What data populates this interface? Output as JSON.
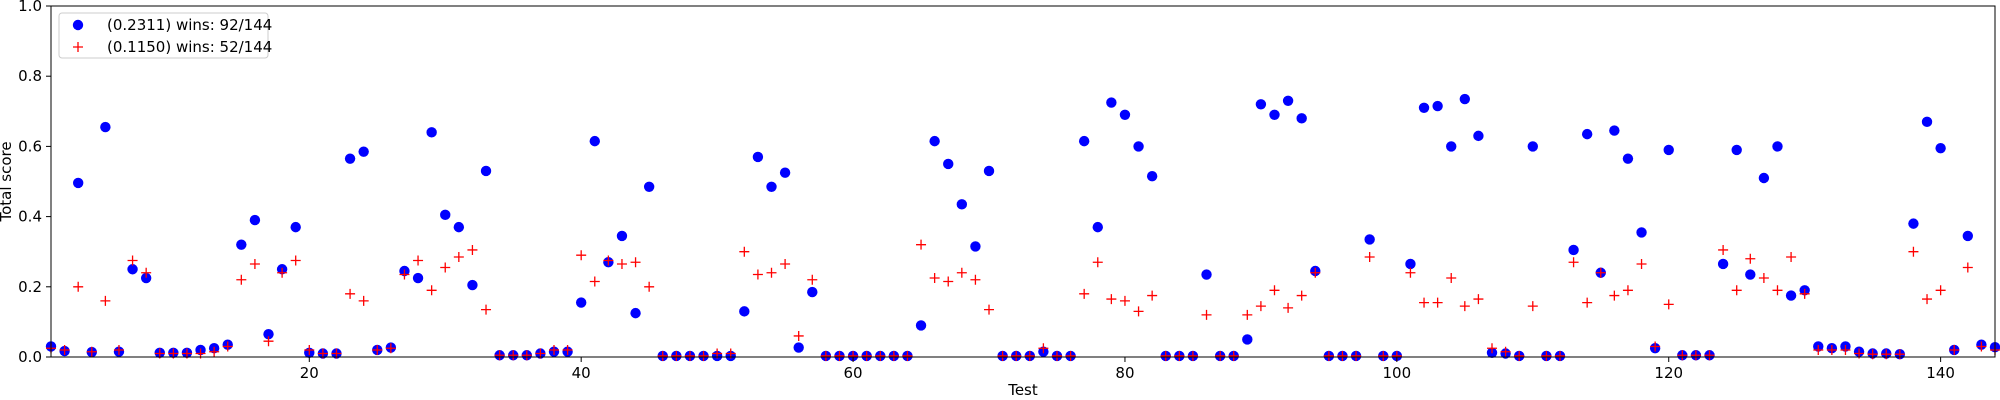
{
  "chart_data": {
    "type": "scatter",
    "xlabel": "Test",
    "ylabel": "Total score",
    "xlim": [
      1,
      144
    ],
    "ylim": [
      0,
      1.0
    ],
    "xticks": [
      20,
      40,
      60,
      80,
      100,
      120,
      140
    ],
    "yticks": [
      0.0,
      0.2,
      0.4,
      0.6,
      0.8,
      1.0
    ],
    "ytick_labels": [
      "0.0",
      "0.2",
      "0.4",
      "0.6",
      "0.8",
      "1.0"
    ],
    "grid": false,
    "legend_position": "top-left",
    "series": [
      {
        "name": "(0.2311) wins: 92/144",
        "marker": "circle",
        "color": "#0000ff",
        "values": [
          0.03,
          0.017,
          0.496,
          0.014,
          0.655,
          0.015,
          0.25,
          0.225,
          0.012,
          0.012,
          0.012,
          0.02,
          0.025,
          0.035,
          0.32,
          0.39,
          0.065,
          0.25,
          0.37,
          0.012,
          0.01,
          0.01,
          0.565,
          0.585,
          0.02,
          0.027,
          0.245,
          0.225,
          0.64,
          0.405,
          0.37,
          0.205,
          0.53,
          0.005,
          0.005,
          0.005,
          0.01,
          0.015,
          0.015,
          0.155,
          0.615,
          0.27,
          0.345,
          0.125,
          0.485,
          0.003,
          0.003,
          0.003,
          0.003,
          0.003,
          0.003,
          0.13,
          0.57,
          0.485,
          0.525,
          0.027,
          0.185,
          0.003,
          0.003,
          0.003,
          0.003,
          0.003,
          0.003,
          0.003,
          0.09,
          0.615,
          0.55,
          0.435,
          0.315,
          0.53,
          0.003,
          0.003,
          0.003,
          0.015,
          0.003,
          0.003,
          0.615,
          0.37,
          0.725,
          0.69,
          0.6,
          0.515,
          0.003,
          0.003,
          0.003,
          0.235,
          0.003,
          0.003,
          0.05,
          0.72,
          0.69,
          0.73,
          0.68,
          0.245,
          0.003,
          0.003,
          0.003,
          0.335,
          0.003,
          0.003,
          0.265,
          0.71,
          0.715,
          0.6,
          0.735,
          0.63,
          0.012,
          0.01,
          0.003,
          0.6,
          0.003,
          0.003,
          0.305,
          0.635,
          0.24,
          0.645,
          0.565,
          0.355,
          0.025,
          0.59,
          0.005,
          0.005,
          0.005,
          0.265,
          0.59,
          0.235,
          0.51,
          0.6,
          0.175,
          0.19,
          0.03,
          0.025,
          0.03,
          0.015,
          0.01,
          0.01,
          0.008,
          0.38,
          0.67,
          0.595,
          0.02,
          0.345,
          0.035,
          0.028
        ]
      },
      {
        "name": "(0.1150) wins: 52/144",
        "marker": "plus",
        "color": "#ff0000",
        "values": [
          0.025,
          0.02,
          0.2,
          0.015,
          0.16,
          0.02,
          0.275,
          0.24,
          0.01,
          0.01,
          0.01,
          0.01,
          0.015,
          0.03,
          0.22,
          0.265,
          0.045,
          0.24,
          0.275,
          0.02,
          0.01,
          0.01,
          0.18,
          0.16,
          0.02,
          0.025,
          0.235,
          0.275,
          0.19,
          0.255,
          0.285,
          0.305,
          0.135,
          0.005,
          0.005,
          0.005,
          0.01,
          0.02,
          0.02,
          0.29,
          0.215,
          0.275,
          0.265,
          0.27,
          0.2,
          0.003,
          0.003,
          0.003,
          0.003,
          0.01,
          0.01,
          0.3,
          0.235,
          0.24,
          0.265,
          0.06,
          0.22,
          0.003,
          0.003,
          0.003,
          0.003,
          0.003,
          0.003,
          0.003,
          0.32,
          0.225,
          0.215,
          0.24,
          0.22,
          0.135,
          0.003,
          0.003,
          0.003,
          0.025,
          0.003,
          0.003,
          0.18,
          0.27,
          0.165,
          0.16,
          0.13,
          0.175,
          0.003,
          0.003,
          0.003,
          0.12,
          0.003,
          0.003,
          0.12,
          0.145,
          0.19,
          0.14,
          0.175,
          0.24,
          0.003,
          0.003,
          0.003,
          0.285,
          0.003,
          0.003,
          0.24,
          0.155,
          0.155,
          0.225,
          0.145,
          0.165,
          0.025,
          0.015,
          0.003,
          0.145,
          0.003,
          0.003,
          0.27,
          0.155,
          0.24,
          0.175,
          0.19,
          0.265,
          0.03,
          0.15,
          0.005,
          0.005,
          0.005,
          0.305,
          0.19,
          0.28,
          0.225,
          0.19,
          0.285,
          0.18,
          0.02,
          0.02,
          0.02,
          0.01,
          0.008,
          0.008,
          0.008,
          0.3,
          0.165,
          0.19,
          0.02,
          0.255,
          0.03,
          0.02
        ]
      }
    ]
  }
}
